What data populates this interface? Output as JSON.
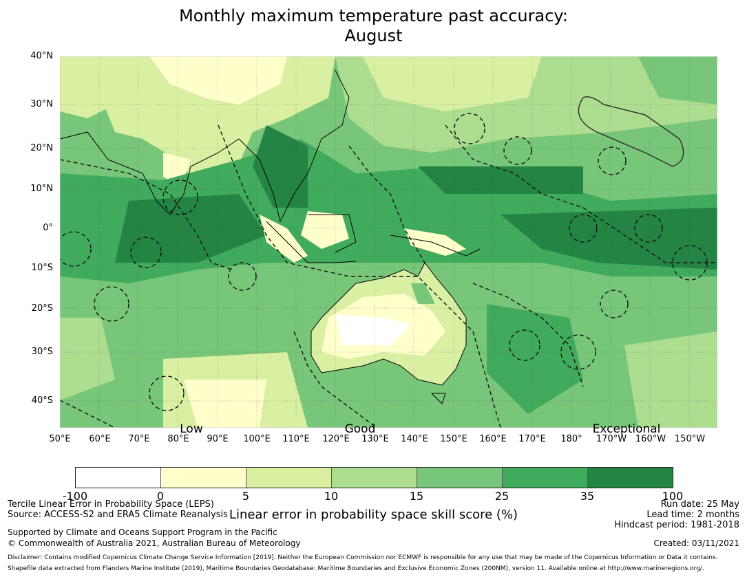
{
  "title": {
    "line1": "Monthly maximum temperature past accuracy:",
    "line2": "August"
  },
  "map": {
    "lat_labels": [
      "40°N",
      "30°N",
      "20°N",
      "10°N",
      "0°",
      "10°S",
      "20°S",
      "30°S",
      "40°S"
    ],
    "lon_labels": [
      "50°E",
      "60°E",
      "70°E",
      "80°E",
      "90°E",
      "100°E",
      "110°E",
      "120°E",
      "130°E",
      "140°E",
      "150°E",
      "160°E",
      "170°E",
      "180°",
      "170°W",
      "160°W",
      "150°W"
    ],
    "annotations": [
      "Low",
      "Good",
      "Exceptional"
    ],
    "extent": {
      "lon_min": 50,
      "lon_max": 217,
      "lat_min": -46,
      "lat_max": 40
    }
  },
  "colorbar": {
    "ticks": [
      "-100",
      "0",
      "5",
      "10",
      "15",
      "25",
      "35",
      "100"
    ],
    "colors": [
      "#ffffff",
      "#ffffcc",
      "#d9f0a3",
      "#addd8e",
      "#78c679",
      "#41ab5d",
      "#238443"
    ],
    "label": "Linear error in probability space skill score (%)"
  },
  "footer": {
    "left1": "Tercile Linear Error in Probability Space (LEPS)",
    "left2": "Source: ACCESS-S2 and ERA5 Climate Reanalysis",
    "left3": "Supported by Climate and Oceans Support Program in the Pacific",
    "left4": "© Commonwealth of Australia 2021, Australian Bureau of Meteorology",
    "run_date": "Run date: 25 May",
    "lead_time": "Lead time: 2 months",
    "hindcast": "Hindcast period: 1981-2018",
    "created": "Created: 03/11/2021",
    "disclaimer": "Disclaimer: Contains modified Copernicus Climate Change Service Information [2019]. Neither the European Commission nor ECMWF is responsible for any use that may be made of the Copernicus Information or Data it contains.",
    "shapefile": "Shapefile data extracted from Flanders Marine Institute (2019), Maritime Boundaries Geodatabase: Maritime Boundaries and Exclusive Economic Zones (200NM), version 11. Available online at http://www.marineregions.org/."
  }
}
